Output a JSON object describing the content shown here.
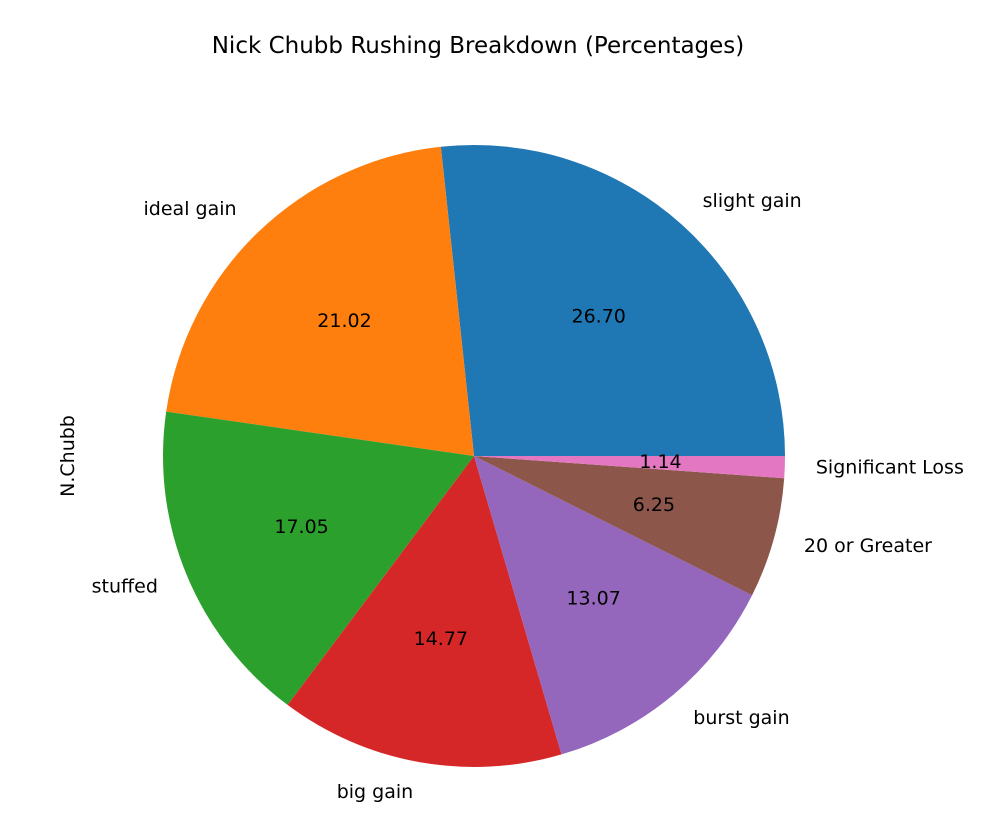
{
  "chart_data": {
    "type": "pie",
    "title": "Nick Chubb Rushing Breakdown (Percentages)",
    "ylabel": "N.Chubb",
    "start_angle_deg": 0,
    "direction": "counterclockwise",
    "slices": [
      {
        "label": "slight gain",
        "value": 26.7,
        "display": "26.70",
        "color": "#1f77b4"
      },
      {
        "label": "ideal gain",
        "value": 21.02,
        "display": "21.02",
        "color": "#ff7f0e"
      },
      {
        "label": "stuffed",
        "value": 17.05,
        "display": "17.05",
        "color": "#2ca02c"
      },
      {
        "label": "big gain",
        "value": 14.77,
        "display": "14.77",
        "color": "#d62728"
      },
      {
        "label": "burst gain",
        "value": 13.07,
        "display": "13.07",
        "color": "#9467bd"
      },
      {
        "label": "20 or Greater",
        "value": 6.25,
        "display": "6.25",
        "color": "#8c564b"
      },
      {
        "label": "Significant Loss",
        "value": 1.14,
        "display": "1.14",
        "color": "#e377c2"
      }
    ]
  }
}
